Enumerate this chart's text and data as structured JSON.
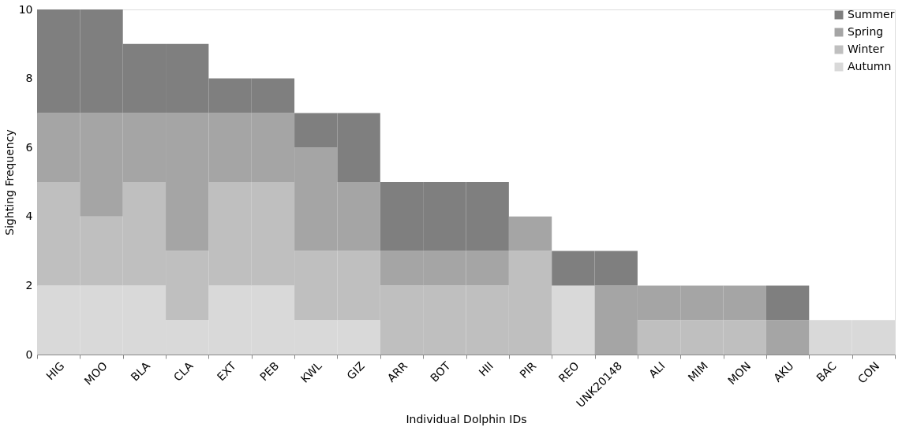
{
  "chart_data": {
    "type": "bar",
    "stacked": true,
    "xlabel": "Individual Dolphin IDs",
    "ylabel": "Sighting Frequency",
    "categories": [
      "HIG",
      "MOO",
      "BLA",
      "CLA",
      "EXT",
      "PEB",
      "KWL",
      "GIZ",
      "ARR",
      "BOT",
      "HII",
      "PIR",
      "REO",
      "UNK20148",
      "ALI",
      "MIM",
      "MON",
      "AKU",
      "BAC",
      "CON"
    ],
    "series": [
      {
        "name": "Autumn",
        "color": "#d9d9d9",
        "values": [
          2,
          2,
          2,
          1,
          2,
          2,
          1,
          1,
          0,
          0,
          0,
          0,
          2,
          0,
          0,
          0,
          0,
          0,
          1,
          1
        ]
      },
      {
        "name": "Winter",
        "color": "#bfbfbf",
        "values": [
          3,
          2,
          3,
          2,
          3,
          3,
          2,
          2,
          2,
          2,
          2,
          3,
          0,
          0,
          1,
          1,
          1,
          0,
          0,
          0
        ]
      },
      {
        "name": "Spring",
        "color": "#a5a5a5",
        "values": [
          2,
          3,
          2,
          4,
          2,
          2,
          3,
          2,
          1,
          1,
          1,
          1,
          0,
          2,
          1,
          1,
          1,
          1,
          0,
          0
        ]
      },
      {
        "name": "Summer",
        "color": "#7f7f7f",
        "values": [
          3,
          3,
          2,
          2,
          1,
          1,
          1,
          2,
          2,
          2,
          2,
          0,
          1,
          1,
          0,
          0,
          0,
          1,
          0,
          0
        ]
      }
    ],
    "ylim": [
      0,
      10
    ],
    "yticks": [
      0,
      2,
      4,
      6,
      8,
      10
    ],
    "grid": false,
    "legend": "top right"
  }
}
